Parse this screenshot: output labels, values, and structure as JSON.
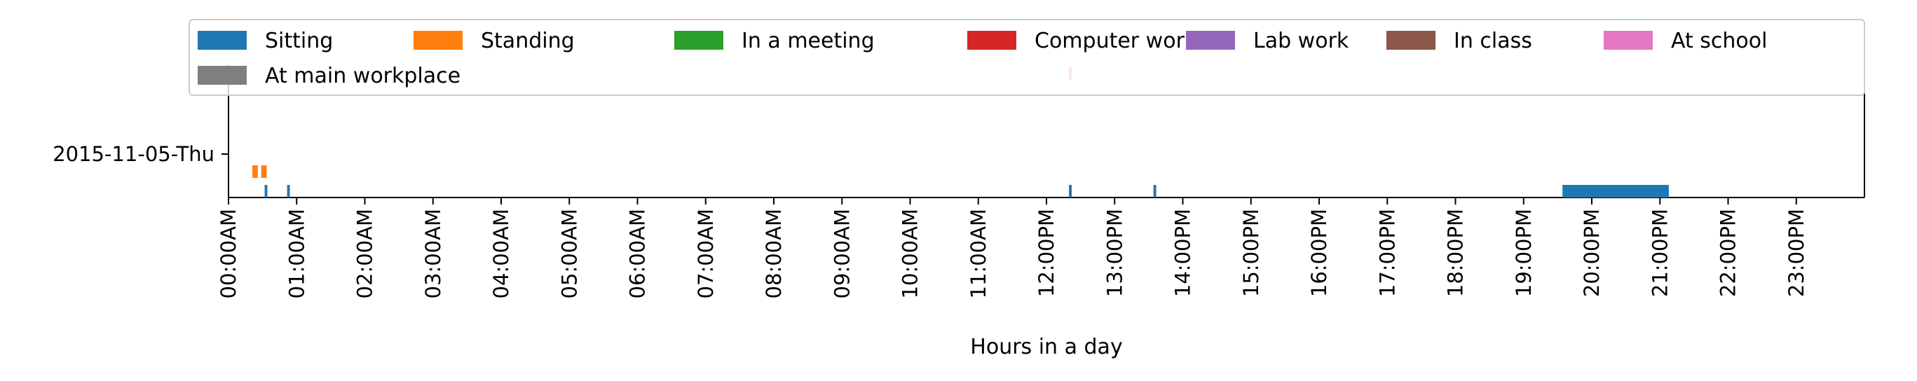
{
  "chart_data": {
    "type": "timeline",
    "title": "",
    "xlabel": "Hours in a day",
    "ylabel": "",
    "xlim": [
      0,
      24
    ],
    "x_ticks": [
      {
        "value": 0,
        "label": "00:00AM"
      },
      {
        "value": 1,
        "label": "01:00AM"
      },
      {
        "value": 2,
        "label": "02:00AM"
      },
      {
        "value": 3,
        "label": "03:00AM"
      },
      {
        "value": 4,
        "label": "04:00AM"
      },
      {
        "value": 5,
        "label": "05:00AM"
      },
      {
        "value": 6,
        "label": "06:00AM"
      },
      {
        "value": 7,
        "label": "07:00AM"
      },
      {
        "value": 8,
        "label": "08:00AM"
      },
      {
        "value": 9,
        "label": "09:00AM"
      },
      {
        "value": 10,
        "label": "10:00AM"
      },
      {
        "value": 11,
        "label": "11:00AM"
      },
      {
        "value": 12,
        "label": "12:00PM"
      },
      {
        "value": 13,
        "label": "13:00PM"
      },
      {
        "value": 14,
        "label": "14:00PM"
      },
      {
        "value": 15,
        "label": "15:00PM"
      },
      {
        "value": 16,
        "label": "16:00PM"
      },
      {
        "value": 17,
        "label": "17:00PM"
      },
      {
        "value": 18,
        "label": "18:00PM"
      },
      {
        "value": 19,
        "label": "19:00PM"
      },
      {
        "value": 20,
        "label": "20:00PM"
      },
      {
        "value": 21,
        "label": "21:00PM"
      },
      {
        "value": 22,
        "label": "22:00PM"
      },
      {
        "value": 23,
        "label": "23:00PM"
      }
    ],
    "y_categories": [
      "2015-11-05-Thu"
    ],
    "legend": {
      "placement": "top",
      "ncol": 7
    },
    "grid": false,
    "series": [
      {
        "name": "Sitting",
        "color": "#1f77b4",
        "lane": 0,
        "intervals": [
          [
            0.53,
            0.57
          ],
          [
            0.86,
            0.9
          ],
          [
            12.33,
            12.37
          ],
          [
            13.57,
            13.61
          ],
          [
            19.57,
            21.13
          ]
        ]
      },
      {
        "name": "Standing",
        "color": "#ff7f0e",
        "lane": 1,
        "intervals": [
          [
            0.35,
            0.43
          ],
          [
            0.48,
            0.56
          ]
        ]
      },
      {
        "name": "In a meeting",
        "color": "#2ca02c",
        "lane": 2,
        "intervals": []
      },
      {
        "name": "Computer work",
        "color": "#d62728",
        "lane": 3,
        "intervals": []
      },
      {
        "name": "Lab work",
        "color": "#9467bd",
        "lane": 4,
        "intervals": []
      },
      {
        "name": "In class",
        "color": "#8c564b",
        "lane": 5,
        "intervals": []
      },
      {
        "name": "At school",
        "color": "#e377c2",
        "lane": 6,
        "intervals": [
          [
            12.33,
            12.37
          ]
        ]
      },
      {
        "name": "At main workplace",
        "color": "#7f7f7f",
        "lane": 7,
        "intervals": []
      }
    ]
  }
}
